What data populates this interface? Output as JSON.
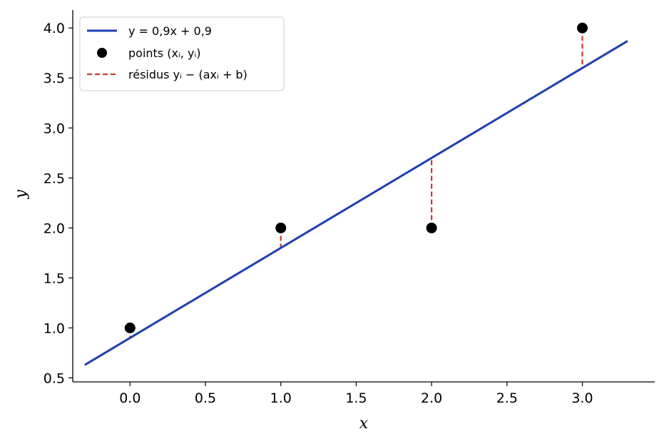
{
  "chart_data": {
    "type": "scatter",
    "xlabel": "x",
    "ylabel": "y",
    "xlim": [
      -0.38,
      3.48
    ],
    "ylim": [
      0.46,
      4.18
    ],
    "x_ticks": [
      0.0,
      0.5,
      1.0,
      1.5,
      2.0,
      2.5,
      3.0
    ],
    "y_ticks": [
      0.5,
      1.0,
      1.5,
      2.0,
      2.5,
      3.0,
      3.5,
      4.0
    ],
    "x_tick_labels": [
      "0.0",
      "0.5",
      "1.0",
      "1.5",
      "2.0",
      "2.5",
      "3.0"
    ],
    "y_tick_labels": [
      "0.5",
      "1.0",
      "1.5",
      "2.0",
      "2.5",
      "3.0",
      "3.5",
      "4.0"
    ],
    "grid": false,
    "legend_position": "top-left",
    "line": {
      "slope": 0.9,
      "intercept": 0.9,
      "x_range": [
        -0.3,
        3.3
      ],
      "color": "#1f3fb0"
    },
    "points": {
      "x": [
        0,
        1,
        2,
        3
      ],
      "y": [
        1,
        2,
        2,
        4
      ],
      "color": "#000000"
    },
    "residuals": {
      "color": "#c8392b"
    },
    "legend": [
      {
        "kind": "line",
        "label": "y = 0,9x + 0,9"
      },
      {
        "kind": "marker",
        "label": "points (xᵢ, yᵢ)"
      },
      {
        "kind": "dashed",
        "label": "résidus yᵢ − (axᵢ + b)"
      }
    ]
  }
}
